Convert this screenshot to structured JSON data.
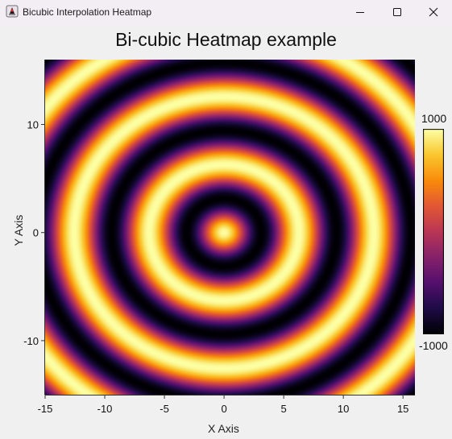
{
  "window": {
    "title": "Bicubic Interpolation Heatmap",
    "icon": "java-duke-icon"
  },
  "controls": [
    "minimize-icon",
    "maximize-icon",
    "close-icon"
  ],
  "chart_data": {
    "type": "heatmap",
    "title": "Bi-cubic Heatmap example",
    "xlabel": "X Axis",
    "ylabel": "Y Axis",
    "xlim": [
      -15,
      16
    ],
    "ylim": [
      -15,
      16
    ],
    "x_ticks": [
      -15,
      -10,
      -5,
      0,
      5,
      10,
      15
    ],
    "y_ticks": [
      -10,
      0,
      10
    ],
    "x_tick_labels": [
      "-15",
      "-10",
      "-5",
      "0",
      "5",
      "10",
      "15"
    ],
    "y_tick_labels": [
      "-10",
      "0",
      "10"
    ],
    "z_function": "1000 * cos(sqrt(x^2 + y^2))",
    "zlim": [
      -1000,
      1000
    ],
    "colorbar": {
      "max_label": "1000",
      "min_label": "-1000",
      "colormap": "inferno",
      "placement": "right"
    },
    "grid": false
  }
}
